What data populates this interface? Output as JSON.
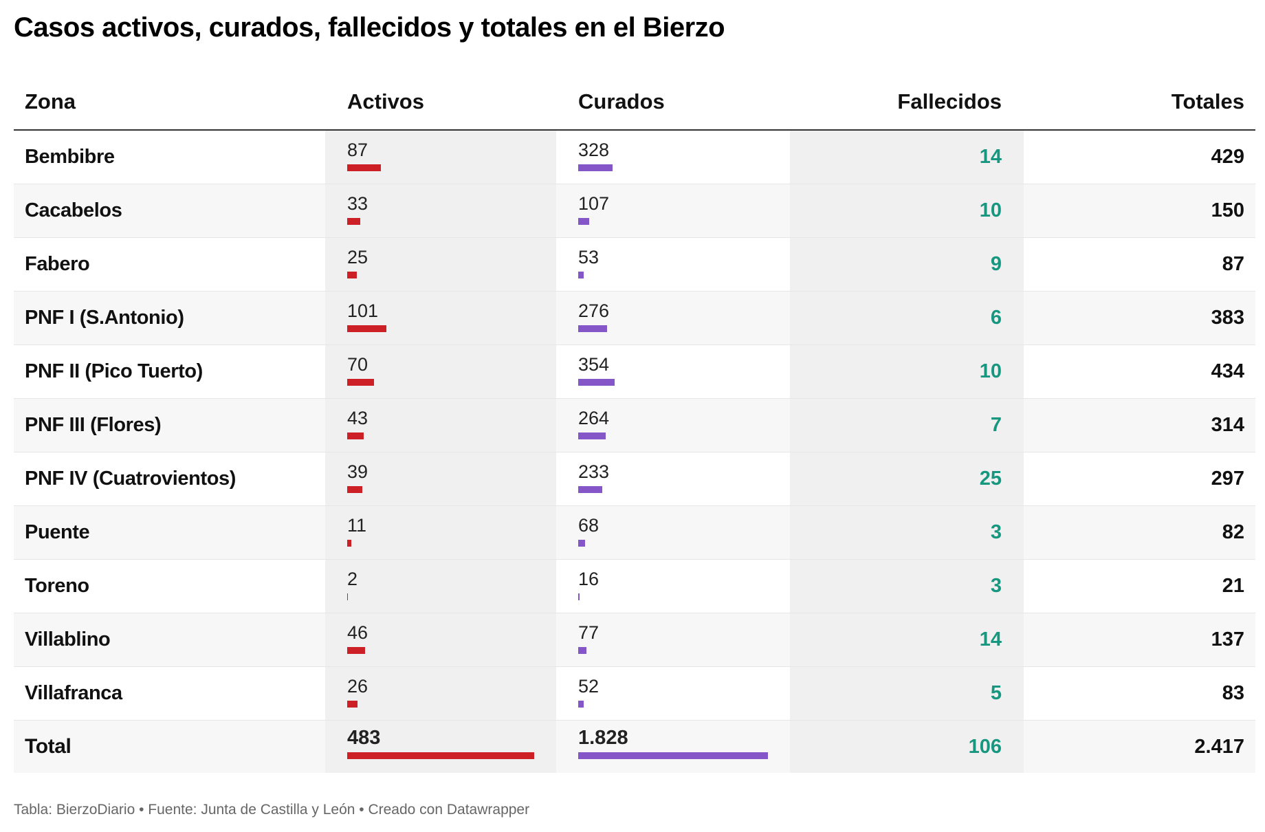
{
  "colors": {
    "activos_bar": "#cc1f26",
    "curados_bar": "#8456c7",
    "fallecidos_text": "#17977f",
    "shaded_column": "#f0f0f0",
    "alt_row": "#f7f7f7"
  },
  "chart_data": {
    "type": "table",
    "title": "Casos activos, curados, fallecidos y totales en el Bierzo",
    "columns": [
      "Zona",
      "Activos",
      "Curados",
      "Fallecidos",
      "Totales"
    ],
    "rows": [
      {
        "zona": "Bembibre",
        "activos": 87,
        "curados": 328,
        "fallecidos": 14,
        "totales": 429,
        "activos_label": "87",
        "curados_label": "328",
        "fallecidos_label": "14",
        "totales_label": "429"
      },
      {
        "zona": "Cacabelos",
        "activos": 33,
        "curados": 107,
        "fallecidos": 10,
        "totales": 150,
        "activos_label": "33",
        "curados_label": "107",
        "fallecidos_label": "10",
        "totales_label": "150"
      },
      {
        "zona": "Fabero",
        "activos": 25,
        "curados": 53,
        "fallecidos": 9,
        "totales": 87,
        "activos_label": "25",
        "curados_label": "53",
        "fallecidos_label": "9",
        "totales_label": "87"
      },
      {
        "zona": "PNF I (S.Antonio)",
        "activos": 101,
        "curados": 276,
        "fallecidos": 6,
        "totales": 383,
        "activos_label": "101",
        "curados_label": "276",
        "fallecidos_label": "6",
        "totales_label": "383"
      },
      {
        "zona": "PNF II (Pico Tuerto)",
        "activos": 70,
        "curados": 354,
        "fallecidos": 10,
        "totales": 434,
        "activos_label": "70",
        "curados_label": "354",
        "fallecidos_label": "10",
        "totales_label": "434"
      },
      {
        "zona": "PNF III (Flores)",
        "activos": 43,
        "curados": 264,
        "fallecidos": 7,
        "totales": 314,
        "activos_label": "43",
        "curados_label": "264",
        "fallecidos_label": "7",
        "totales_label": "314"
      },
      {
        "zona": "PNF IV (Cuatrovientos)",
        "activos": 39,
        "curados": 233,
        "fallecidos": 25,
        "totales": 297,
        "activos_label": "39",
        "curados_label": "233",
        "fallecidos_label": "25",
        "totales_label": "297"
      },
      {
        "zona": "Puente",
        "activos": 11,
        "curados": 68,
        "fallecidos": 3,
        "totales": 82,
        "activos_label": "11",
        "curados_label": "68",
        "fallecidos_label": "3",
        "totales_label": "82"
      },
      {
        "zona": "Toreno",
        "activos": 2,
        "curados": 16,
        "fallecidos": 3,
        "totales": 21,
        "activos_label": "2",
        "curados_label": "16",
        "fallecidos_label": "3",
        "totales_label": "21"
      },
      {
        "zona": "Villablino",
        "activos": 46,
        "curados": 77,
        "fallecidos": 14,
        "totales": 137,
        "activos_label": "46",
        "curados_label": "77",
        "fallecidos_label": "14",
        "totales_label": "137"
      },
      {
        "zona": "Villafranca",
        "activos": 26,
        "curados": 52,
        "fallecidos": 5,
        "totales": 83,
        "activos_label": "26",
        "curados_label": "52",
        "fallecidos_label": "5",
        "totales_label": "83"
      },
      {
        "zona": "Total",
        "activos": 483,
        "curados": 1828,
        "fallecidos": 106,
        "totales": 2417,
        "activos_label": "483",
        "curados_label": "1.828",
        "fallecidos_label": "106",
        "totales_label": "2.417"
      }
    ]
  },
  "footer": "Tabla: BierzoDiario • Fuente: Junta de Castilla y León • Creado con Datawrapper"
}
